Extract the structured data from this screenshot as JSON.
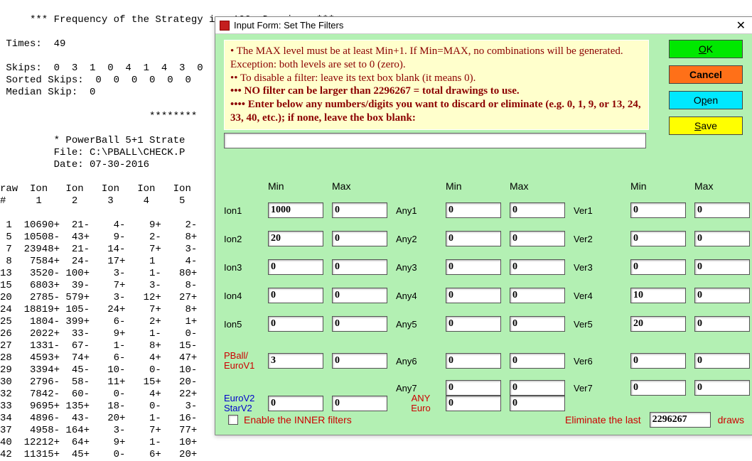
{
  "bg": {
    "header": "     *** Frequency of the Strategy in  100  Drawings ***",
    "times": " Times:  49",
    "skips": " Skips:  0  3  1  0  4  1  4  3  0",
    "sorted": " Sorted Skips:  0  0  0  0  0  0",
    "median": " Median Skip:  0",
    "stars": "                         ********",
    "strat": "         * PowerBall 5+1 Strate",
    "file": "         File: C:\\PBALL\\CHECK.P",
    "date": "         Date: 07-30-2016",
    "cols": "raw  Ion   Ion   Ion   Ion   Ion\n#     1     2     3     4     5",
    "rows": [
      " 1  10690+  21-    4-    9+    2-",
      " 5  10508-  43+    9-    2-    8+",
      " 7  23948+  21-   14-    7+    3-",
      " 8   7584+  24-   17+    1     4-",
      "13   3520- 100+    3-    1-   80+",
      "15   6803+  39-    7+    3-    8-",
      "20   2785- 579+    3-   12+   27+",
      "24  18819+ 105-   24+    7+    8+",
      "25   1804- 399+    6-    2+    1+",
      "26   2022+  33-    9+    1-    0-",
      "27   1331-  67-    1-    8+   15-",
      "28   4593+  74+    6-    4+   47+",
      "29   3394+  45-   10-    0-   10-",
      "30   2796-  58-   11+   15+   20-",
      "32   7842-  60-    0-    4+   22+",
      "33   9695+ 135+   18-    0-    3-",
      "34   4896-  43-   20+    1-   16-",
      "37   4958- 164+    3-    7+   77+",
      "40  12212+  64+    9+    1-   10+",
      "42  11315+  45+    0-    6+   20+"
    ]
  },
  "dialog": {
    "title": "Input Form: Set The Filters",
    "instructions": {
      "l1": "• The MAX level must be at least Min+1. If Min=MAX, no combinations will be generated.  Exception: both levels are set to 0 (zero).",
      "l2": "•• To disable a filter: leave its text box blank (it means 0).",
      "l3": "••• NO filter can be larger than 2296267 = total drawings to use.",
      "l4": "•••• Enter below any numbers/digits you want to discard or eliminate  (e.g.  0, 1, 9, or 13, 24, 33, 40, etc.);  if none, leave the box blank:"
    },
    "discard_value": "",
    "buttons": {
      "ok": "OK",
      "cancel": "Cancel",
      "open": "Open",
      "save": "Save"
    },
    "headers": {
      "min": "Min",
      "max": "Max"
    },
    "labels": {
      "ion": [
        "Ion1",
        "Ion2",
        "Ion3",
        "Ion4",
        "Ion5"
      ],
      "any": [
        "Any1",
        "Any2",
        "Any3",
        "Any4",
        "Any5",
        "Any6",
        "Any7"
      ],
      "ver": [
        "Ver1",
        "Ver2",
        "Ver3",
        "Ver4",
        "Ver5",
        "Ver6",
        "Ver7"
      ],
      "pball": "PBall/\nEuroV1",
      "eurov2": "EuroV2\nStarV2",
      "anyeuro": "ANY\nEuro"
    },
    "values": {
      "ion_min": [
        "1000",
        "20",
        "0",
        "0",
        "0"
      ],
      "ion_max": [
        "0",
        "0",
        "0",
        "0",
        "0"
      ],
      "any_min": [
        "0",
        "0",
        "0",
        "0",
        "0",
        "0",
        "0"
      ],
      "any_max": [
        "0",
        "0",
        "0",
        "0",
        "0",
        "0",
        "0"
      ],
      "ver_min": [
        "0",
        "0",
        "0",
        "10",
        "20",
        "0",
        "0"
      ],
      "ver_max": [
        "0",
        "0",
        "0",
        "0",
        "0",
        "0",
        "0"
      ],
      "pball_min": "3",
      "pball_max": "0",
      "eurov2_min": "0",
      "eurov2_max": "0",
      "anyeuro_min": "0",
      "anyeuro_max": "0"
    },
    "bottom": {
      "checkbox_label": "Enable the INNER filters",
      "eliminate_label": "Eliminate the last",
      "eliminate_value": "2296267",
      "draws": "draws"
    }
  },
  "colors": {
    "dialog_bg": "#b3f0b3",
    "instructions_bg": "#ffffcc",
    "red_text": "#cc0000",
    "dark_red": "#8b0000",
    "ok": "#00e800",
    "cancel": "#ff7018",
    "open": "#00e8ff",
    "save": "#ffff00"
  }
}
